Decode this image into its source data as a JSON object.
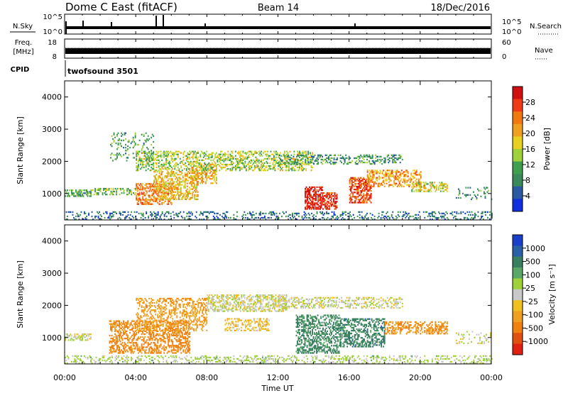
{
  "header": {
    "station": "Dome C East (fitACF)",
    "beam": "Beam 14",
    "date": "18/Dec/2016"
  },
  "nsky_panel": {
    "left_label": "N.Sky",
    "right_label": "N.Search",
    "left_ticks": [
      "10^5",
      "10^0"
    ],
    "right_ticks": [
      "10^5",
      "10^0"
    ]
  },
  "freq_panel": {
    "left_label_1": "Freq.",
    "left_label_2": "[MHz]",
    "right_label": "Nave",
    "left_ticks": [
      "18",
      "8"
    ],
    "right_ticks": [
      "60",
      "0"
    ]
  },
  "cpid": {
    "label": "CPID",
    "value": "twofsound 3501"
  },
  "x_axis": {
    "label": "Time UT",
    "ticks": [
      "00:00",
      "04:00",
      "08:00",
      "12:00",
      "16:00",
      "20:00",
      "00:00"
    ]
  },
  "chart_data": [
    {
      "type": "heatmap",
      "name": "Power",
      "xlabel": "Time UT",
      "ylabel": "Slant Range [km]",
      "xlim": [
        0,
        24
      ],
      "ylim": [
        180,
        4500
      ],
      "yticks": [
        1000,
        2000,
        3000,
        4000
      ],
      "colorbar": {
        "title": "Power [dB]",
        "ticks": [
          "28",
          "24",
          "20",
          "16",
          "12",
          "8",
          "4"
        ],
        "colors": [
          "#d01010",
          "#f03a18",
          "#f07a10",
          "#f0a020",
          "#e8d020",
          "#9fd23a",
          "#3f9f4e",
          "#3a8a5c",
          "#2a5aa0",
          "#1030e0"
        ]
      },
      "regions": [
        {
          "t0": 0.0,
          "t1": 24.0,
          "r0": 180,
          "r1": 420,
          "level": 6,
          "density": 0.25
        },
        {
          "t0": 0.0,
          "t1": 1.5,
          "r0": 900,
          "r1": 1100,
          "level": 10,
          "density": 0.5
        },
        {
          "t0": 1.5,
          "t1": 4.0,
          "r0": 950,
          "r1": 1150,
          "level": 12,
          "density": 0.35
        },
        {
          "t0": 4.0,
          "t1": 6.0,
          "r0": 650,
          "r1": 1300,
          "level": 22,
          "density": 0.45
        },
        {
          "t0": 5.0,
          "t1": 7.5,
          "r0": 800,
          "r1": 1700,
          "level": 18,
          "density": 0.45
        },
        {
          "t0": 7.0,
          "t1": 8.5,
          "r0": 1300,
          "r1": 1900,
          "level": 19,
          "density": 0.4
        },
        {
          "t0": 4.0,
          "t1": 14.0,
          "r0": 1700,
          "r1": 2300,
          "level": 14,
          "density": 0.4
        },
        {
          "t0": 2.5,
          "t1": 5.0,
          "r0": 2000,
          "r1": 2900,
          "level": 10,
          "density": 0.15
        },
        {
          "t0": 13.5,
          "t1": 14.5,
          "r0": 500,
          "r1": 1200,
          "level": 28,
          "density": 0.6
        },
        {
          "t0": 14.5,
          "t1": 15.3,
          "r0": 500,
          "r1": 1000,
          "level": 27,
          "density": 0.55
        },
        {
          "t0": 16.0,
          "t1": 17.2,
          "r0": 700,
          "r1": 1500,
          "level": 25,
          "density": 0.55
        },
        {
          "t0": 17.0,
          "t1": 20.0,
          "r0": 1200,
          "r1": 1700,
          "level": 20,
          "density": 0.45
        },
        {
          "t0": 19.5,
          "t1": 21.5,
          "r0": 1050,
          "r1": 1350,
          "level": 15,
          "density": 0.4
        },
        {
          "t0": 12.0,
          "t1": 19.0,
          "r0": 1900,
          "r1": 2200,
          "level": 9,
          "density": 0.3
        },
        {
          "t0": 22.0,
          "t1": 24.0,
          "r0": 800,
          "r1": 1200,
          "level": 8,
          "density": 0.15
        }
      ]
    },
    {
      "type": "heatmap",
      "name": "Velocity",
      "xlabel": "Time UT",
      "ylabel": "Slant Range [km]",
      "xlim": [
        0,
        24
      ],
      "ylim": [
        180,
        4500
      ],
      "yticks": [
        1000,
        2000,
        3000,
        4000
      ],
      "colorbar": {
        "title": "Velocity [m s⁻¹]",
        "ticks": [
          "1000",
          "500",
          "100",
          "25",
          "-25",
          "-100",
          "-500",
          "-1000"
        ],
        "colors": [
          "#1a3fc8",
          "#2a60a8",
          "#3a8060",
          "#5aa868",
          "#9fd23a",
          "#c8c8c8",
          "#f0c020",
          "#f0a020",
          "#f08010",
          "#e05010",
          "#e02010"
        ]
      },
      "regions": [
        {
          "t0": 0.0,
          "t1": 24.0,
          "r0": 180,
          "r1": 420,
          "level": 40,
          "density": 0.25
        },
        {
          "t0": 0.0,
          "t1": 1.5,
          "r0": 900,
          "r1": 1100,
          "level": 0,
          "density": 0.45
        },
        {
          "t0": 2.5,
          "t1": 7.0,
          "r0": 500,
          "r1": 1500,
          "level": -300,
          "density": 0.45
        },
        {
          "t0": 4.0,
          "t1": 8.0,
          "r0": 1200,
          "r1": 2200,
          "level": -200,
          "density": 0.35
        },
        {
          "t0": 8.0,
          "t1": 12.5,
          "r0": 1800,
          "r1": 2300,
          "level": 0,
          "density": 0.45
        },
        {
          "t0": 9.0,
          "t1": 11.5,
          "r0": 1200,
          "r1": 1600,
          "level": -70,
          "density": 0.3
        },
        {
          "t0": 13.0,
          "t1": 15.5,
          "r0": 500,
          "r1": 1700,
          "level": 300,
          "density": 0.45
        },
        {
          "t0": 15.5,
          "t1": 18.0,
          "r0": 700,
          "r1": 1600,
          "level": 350,
          "density": 0.45
        },
        {
          "t0": 18.0,
          "t1": 21.5,
          "r0": 1100,
          "r1": 1500,
          "level": -250,
          "density": 0.45
        },
        {
          "t0": 12.0,
          "t1": 19.0,
          "r0": 1900,
          "r1": 2250,
          "level": 0,
          "density": 0.35
        },
        {
          "t0": 22.0,
          "t1": 24.0,
          "r0": 800,
          "r1": 1200,
          "level": 0,
          "density": 0.15
        }
      ]
    }
  ]
}
